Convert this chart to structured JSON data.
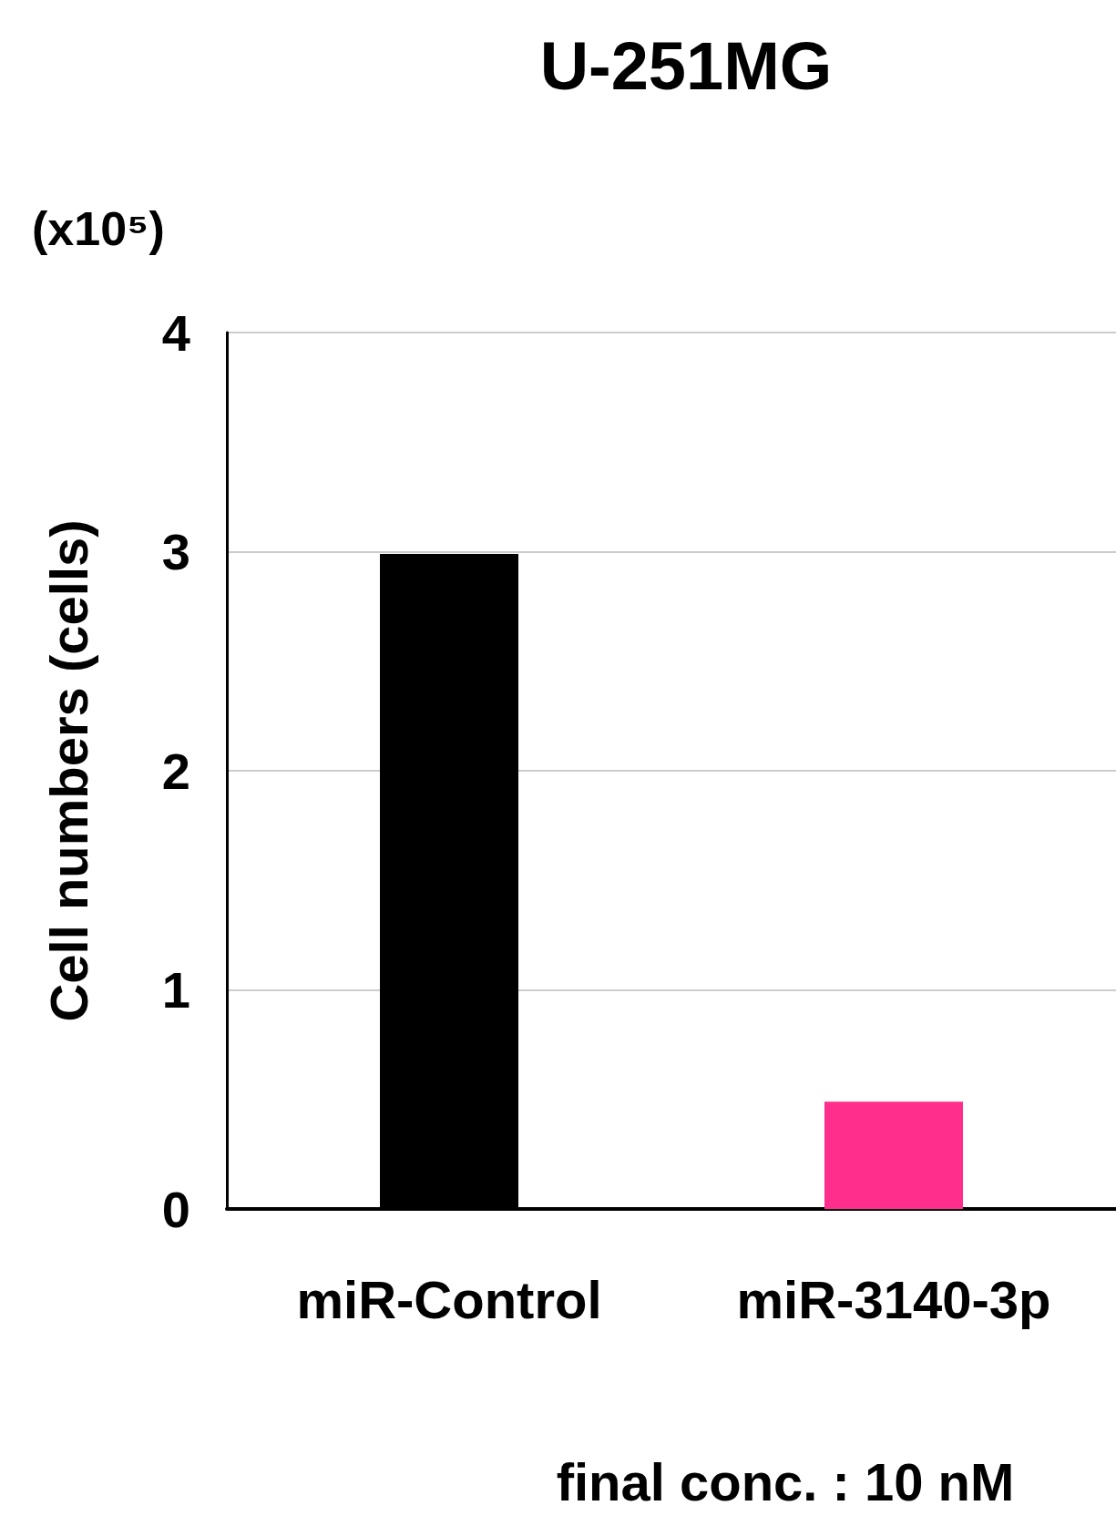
{
  "chart_data": {
    "type": "bar",
    "title": "U-251MG",
    "categories": [
      "miR-Control",
      "miR-3140-3p"
    ],
    "values": [
      2.99,
      0.49
    ],
    "colors": [
      "#000000",
      "#ff2d8c"
    ],
    "ylabel": "Cell numbers (cells)",
    "xlabel": "final conc. : 10 nM",
    "annotations": [
      "(x10⁵)"
    ],
    "ylim": [
      0,
      4
    ],
    "yticks": [
      0,
      1,
      2,
      3,
      4
    ],
    "grid": "y"
  }
}
